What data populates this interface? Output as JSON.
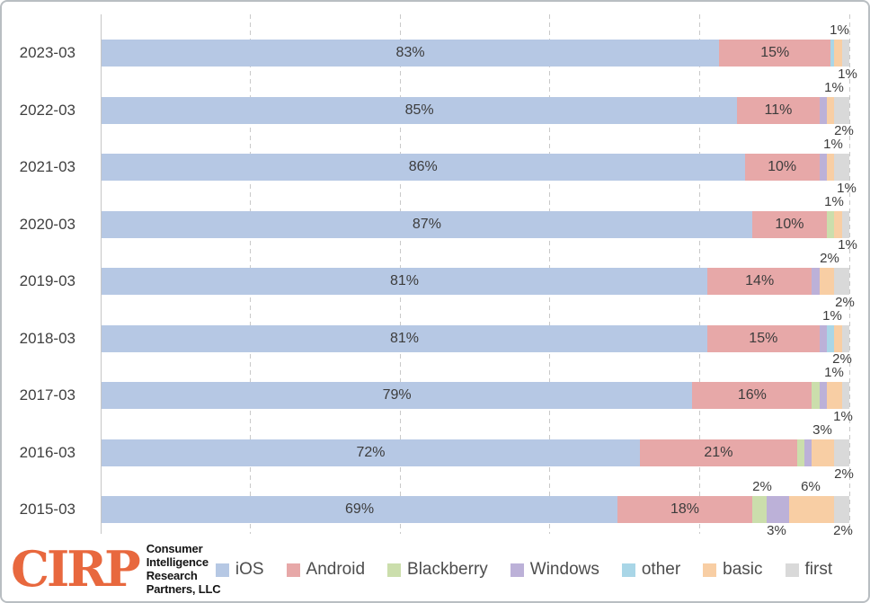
{
  "frame": {
    "background": "#ffffff",
    "border_color": "#b9bec2"
  },
  "chart_data": {
    "type": "bar",
    "subtype": "horizontal-stacked",
    "title": "",
    "xlabel": "",
    "ylabel": "",
    "xlim": [
      0,
      100
    ],
    "grid": "vertical-dashed",
    "gridlines_percent": [
      20,
      40,
      60,
      80,
      100
    ],
    "legend_position": "bottom",
    "inside_label_min_value": 10,
    "categories": [
      "2023-03",
      "2022-03",
      "2021-03",
      "2020-03",
      "2019-03",
      "2018-03",
      "2017-03",
      "2016-03",
      "2015-03"
    ],
    "series": [
      {
        "name": "iOS",
        "color": "#B6C8E4",
        "values": [
          83,
          85,
          86,
          87,
          81,
          81,
          79,
          72,
          69
        ]
      },
      {
        "name": "Android",
        "color": "#E7A8A8",
        "values": [
          15,
          11,
          10,
          10,
          14,
          15,
          16,
          21,
          18
        ]
      },
      {
        "name": "Blackberry",
        "color": "#CBDEAC",
        "values": [
          0,
          0,
          0,
          1,
          0,
          0,
          1,
          1,
          2
        ]
      },
      {
        "name": "Windows",
        "color": "#BCB1D8",
        "values": [
          0,
          1,
          1,
          0,
          1,
          1,
          1,
          1,
          3
        ]
      },
      {
        "name": "other",
        "color": "#A9D6E7",
        "values": [
          0.5,
          0,
          0,
          0,
          0,
          1,
          0,
          0,
          0
        ]
      },
      {
        "name": "basic",
        "color": "#F8CEA4",
        "values": [
          1,
          1,
          1,
          1,
          2,
          1,
          2,
          3,
          6
        ]
      },
      {
        "name": "first",
        "color": "#D9D9D9",
        "values": [
          1,
          2,
          2,
          1,
          2,
          1,
          1,
          2,
          2
        ]
      }
    ],
    "outside_labels": [
      [
        {
          "text": "1%",
          "x": 932,
          "level": "lower"
        }
      ],
      [
        {
          "text": "1%",
          "x": 941,
          "level": "upper"
        },
        {
          "text": "1%",
          "x": 926,
          "level": "lower"
        }
      ],
      [
        {
          "text": "2%",
          "x": 937,
          "level": "upper"
        },
        {
          "text": "1%",
          "x": 925,
          "level": "lower"
        }
      ],
      [
        {
          "text": "1%",
          "x": 940,
          "level": "upper"
        },
        {
          "text": "1%",
          "x": 926,
          "level": "lower"
        }
      ],
      [
        {
          "text": "1%",
          "x": 941,
          "level": "upper"
        },
        {
          "text": "2%",
          "x": 921,
          "level": "lower"
        }
      ],
      [
        {
          "text": "2%",
          "x": 938,
          "level": "upper"
        },
        {
          "text": "1%",
          "x": 924,
          "level": "lower"
        }
      ],
      [
        {
          "text": "2%",
          "x": 935,
          "level": "upper"
        },
        {
          "text": "1%",
          "x": 926,
          "level": "lower"
        }
      ],
      [
        {
          "text": "1%",
          "x": 936,
          "level": "upper"
        },
        {
          "text": "3%",
          "x": 913,
          "level": "lower"
        },
        {
          "text": "2%",
          "x": 937,
          "level": "below"
        }
      ],
      [
        {
          "text": "2%",
          "x": 846,
          "level": "lower"
        },
        {
          "text": "6%",
          "x": 900,
          "level": "lower"
        },
        {
          "text": "3%",
          "x": 862,
          "level": "below"
        },
        {
          "text": "2%",
          "x": 936,
          "level": "below"
        }
      ]
    ]
  },
  "logo": {
    "brand": "CIRP",
    "brand_color": "#E8683E",
    "lines": [
      "Consumer",
      "Intelligence",
      "Research",
      "Partners, LLC"
    ]
  }
}
